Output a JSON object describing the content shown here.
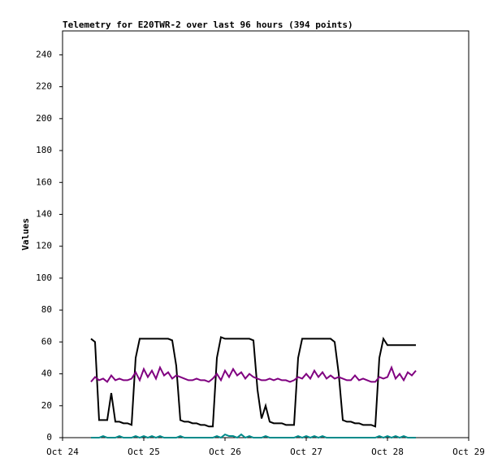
{
  "chart_data": {
    "type": "line",
    "title": "Telemetry for E20TWR-2 over last 96 hours (394 points)",
    "y_label": "Values",
    "xlim": [
      0,
      5
    ],
    "xticks": [
      {
        "value": 0,
        "label": "Oct 24"
      },
      {
        "value": 1,
        "label": "Oct 25"
      },
      {
        "value": 2,
        "label": "Oct 26"
      },
      {
        "value": 3,
        "label": "Oct 27"
      },
      {
        "value": 4,
        "label": "Oct 28"
      },
      {
        "value": 5,
        "label": "Oct 29"
      }
    ],
    "ylim": [
      0,
      255
    ],
    "yticks": [
      0,
      20,
      40,
      60,
      80,
      100,
      120,
      140,
      160,
      180,
      200,
      220,
      240
    ],
    "grid": false,
    "x": [
      0.35,
      0.4,
      0.45,
      0.5,
      0.55,
      0.6,
      0.65,
      0.7,
      0.75,
      0.8,
      0.85,
      0.9,
      0.95,
      1,
      1.05,
      1.1,
      1.15,
      1.2,
      1.25,
      1.3,
      1.35,
      1.4,
      1.45,
      1.5,
      1.55,
      1.6,
      1.65,
      1.7,
      1.75,
      1.8,
      1.85,
      1.9,
      1.95,
      2,
      2.05,
      2.1,
      2.15,
      2.2,
      2.25,
      2.3,
      2.35,
      2.4,
      2.45,
      2.5,
      2.55,
      2.6,
      2.65,
      2.7,
      2.75,
      2.8,
      2.85,
      2.9,
      2.95,
      3,
      3.05,
      3.1,
      3.15,
      3.2,
      3.25,
      3.3,
      3.35,
      3.4,
      3.45,
      3.5,
      3.55,
      3.6,
      3.65,
      3.7,
      3.75,
      3.8,
      3.85,
      3.9,
      3.95,
      4,
      4.05,
      4.1,
      4.15,
      4.2,
      4.25,
      4.3,
      4.35
    ],
    "series": [
      {
        "color": "#000000",
        "values": [
          62,
          60,
          11,
          11,
          11,
          28,
          10,
          10,
          9,
          9,
          8,
          50,
          62,
          62,
          62,
          62,
          62,
          62,
          62,
          62,
          61,
          45,
          11,
          10,
          10,
          9,
          9,
          8,
          8,
          7,
          7,
          50,
          63,
          62,
          62,
          62,
          62,
          62,
          62,
          62,
          61,
          30,
          12,
          20,
          10,
          9,
          9,
          9,
          8,
          8,
          8,
          50,
          62,
          62,
          62,
          62,
          62,
          62,
          62,
          62,
          60,
          40,
          11,
          10,
          10,
          9,
          9,
          8,
          8,
          8,
          7,
          50,
          62,
          58,
          58,
          58,
          58,
          58,
          58,
          58,
          58
        ]
      },
      {
        "color": "#800080",
        "values": [
          35,
          38,
          36,
          37,
          35,
          39,
          36,
          37,
          36,
          36,
          37,
          41,
          36,
          43,
          38,
          42,
          37,
          44,
          39,
          41,
          37,
          39,
          38,
          37,
          36,
          36,
          37,
          36,
          36,
          35,
          37,
          40,
          36,
          42,
          38,
          43,
          39,
          41,
          37,
          40,
          38,
          37,
          36,
          36,
          37,
          36,
          37,
          36,
          36,
          35,
          36,
          38,
          37,
          40,
          37,
          42,
          38,
          41,
          37,
          39,
          37,
          38,
          37,
          36,
          36,
          39,
          36,
          37,
          36,
          35,
          35,
          38,
          37,
          38,
          44,
          37,
          40,
          36,
          41,
          39,
          42
        ]
      },
      {
        "color": "#008b8b",
        "values": [
          0,
          0,
          0,
          1,
          0,
          0,
          0,
          1,
          0,
          0,
          0,
          1,
          0,
          1,
          0,
          1,
          0,
          1,
          0,
          0,
          0,
          0,
          1,
          0,
          0,
          0,
          0,
          0,
          0,
          0,
          0,
          1,
          0,
          2,
          1,
          1,
          0,
          2,
          0,
          1,
          0,
          0,
          0,
          1,
          0,
          0,
          0,
          0,
          0,
          0,
          0,
          1,
          0,
          1,
          0,
          1,
          0,
          1,
          0,
          0,
          0,
          0,
          0,
          0,
          0,
          0,
          0,
          0,
          0,
          0,
          0,
          1,
          0,
          1,
          0,
          1,
          0,
          1,
          0,
          0,
          0
        ]
      }
    ]
  }
}
